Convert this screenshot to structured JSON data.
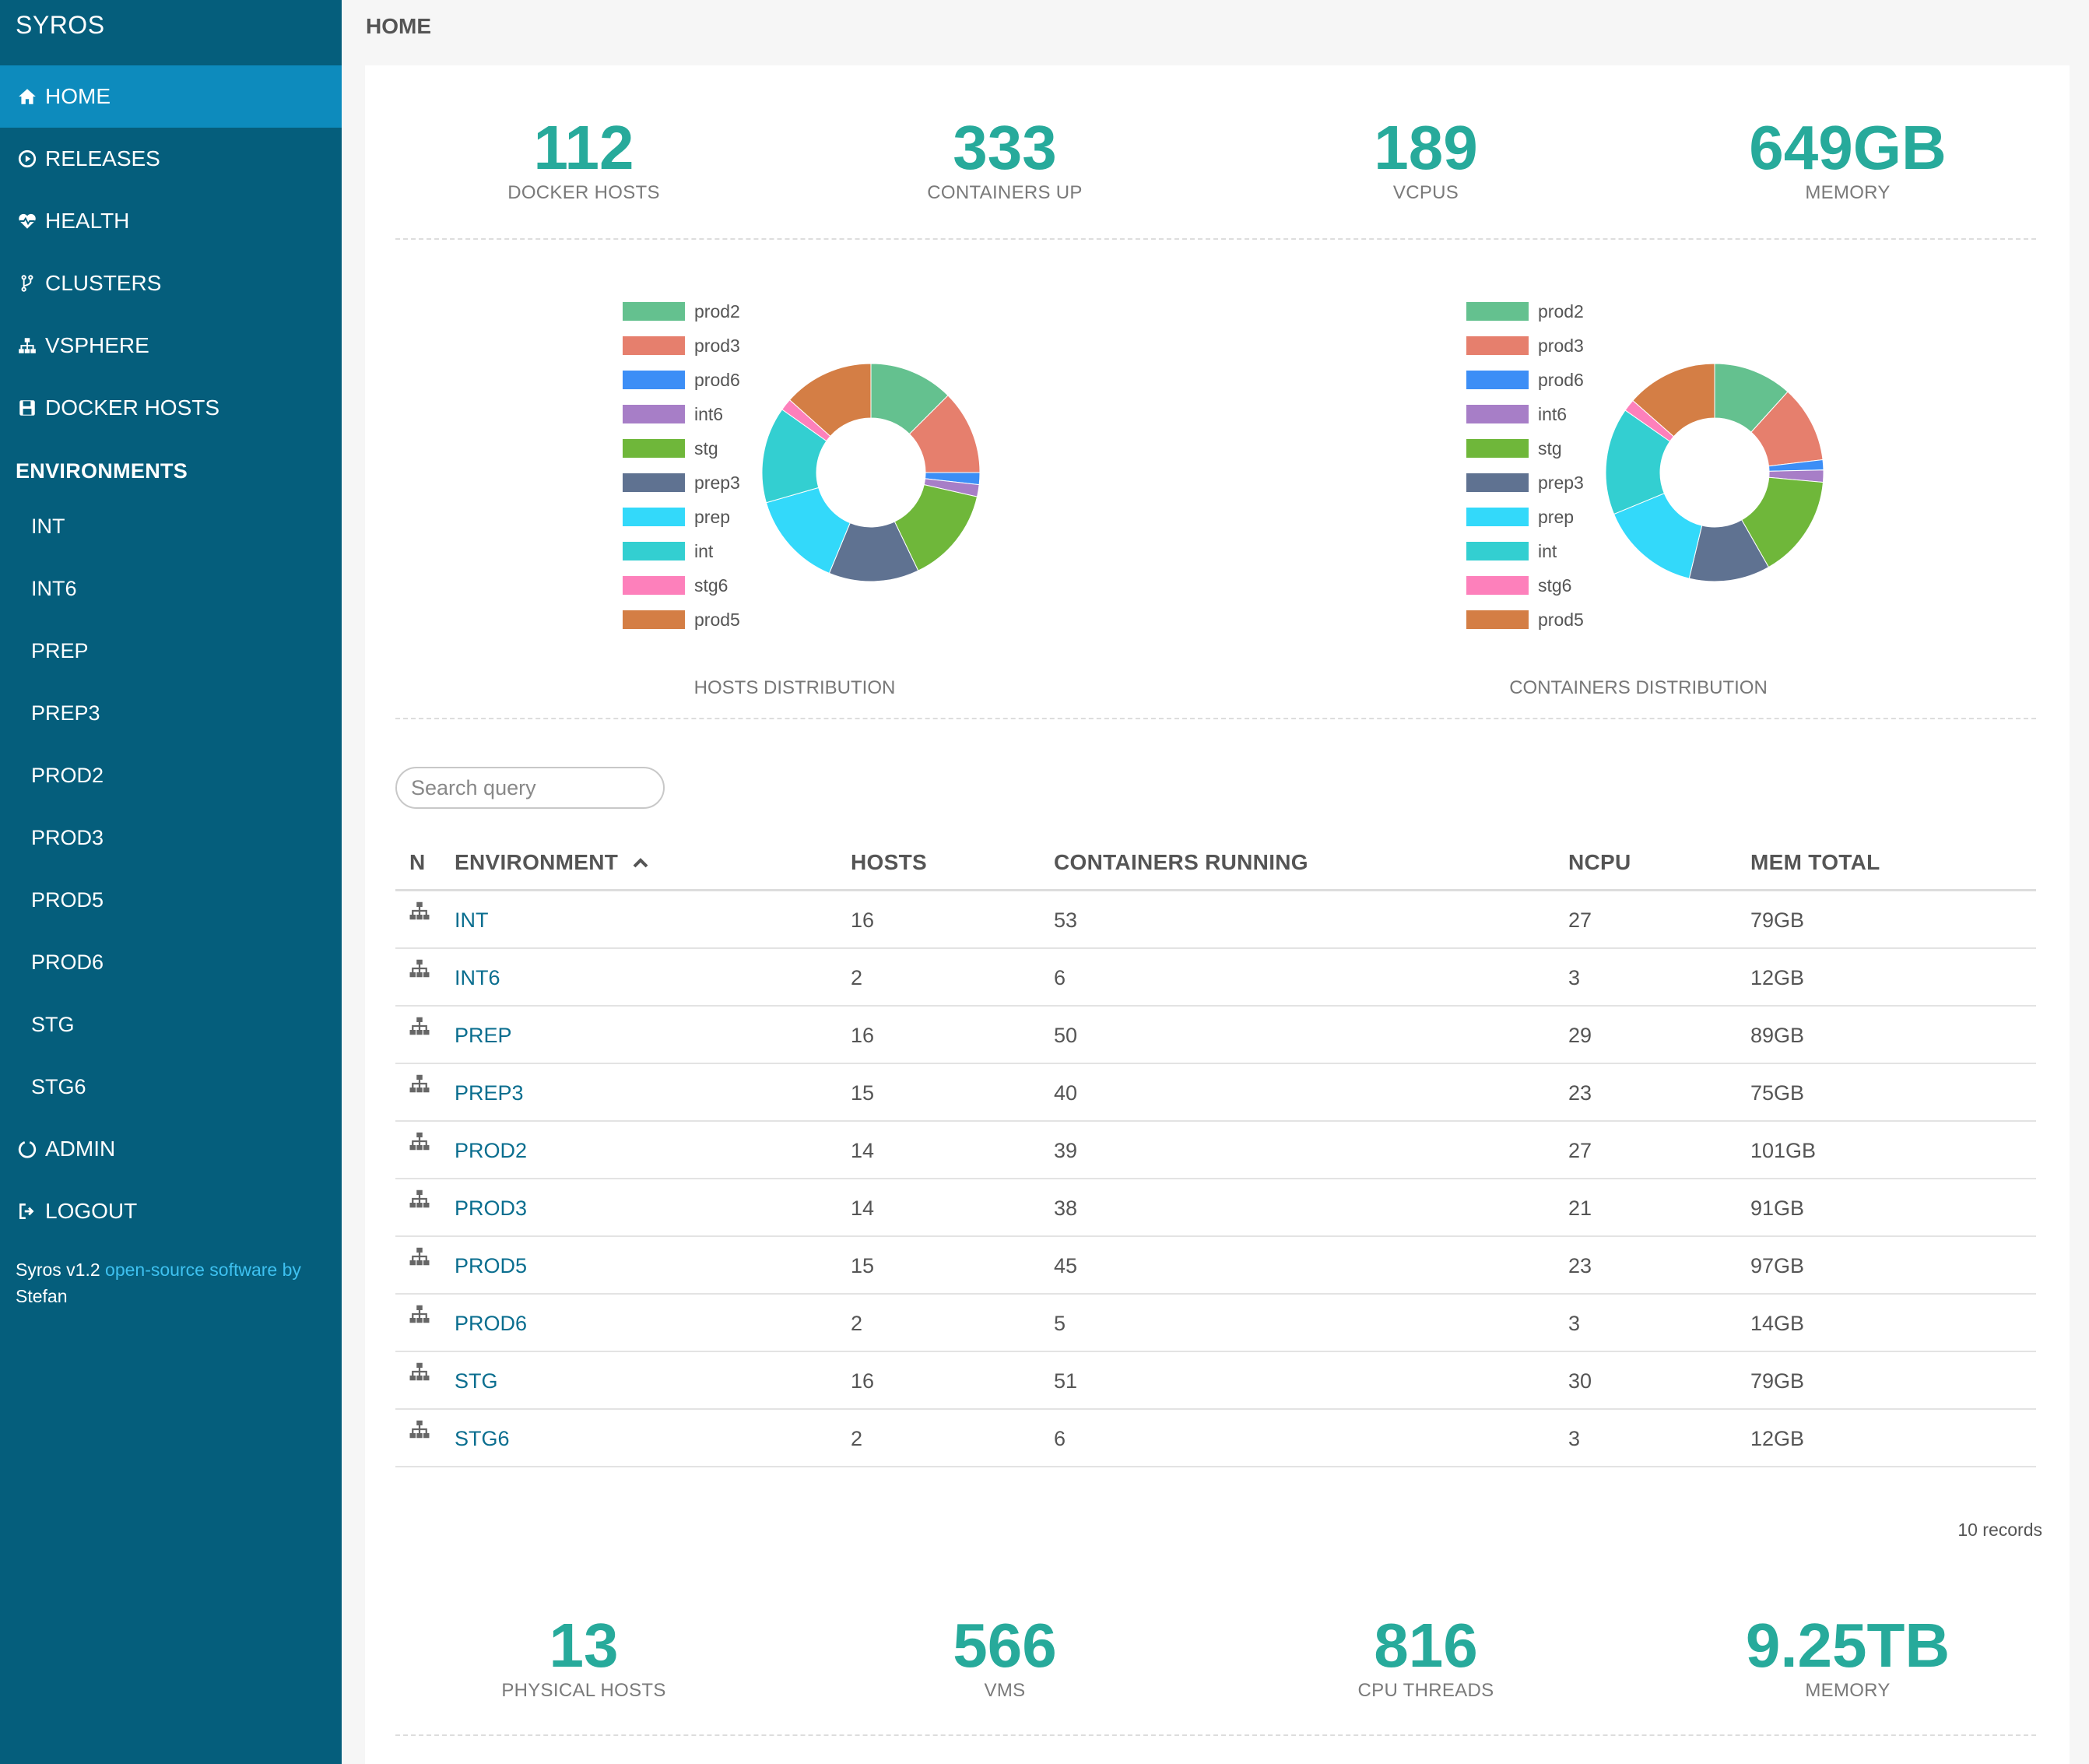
{
  "brand": "SYROS",
  "nav": [
    {
      "label": "HOME",
      "icon": "home-icon",
      "active": true
    },
    {
      "label": "RELEASES",
      "icon": "play-circle-icon",
      "active": false
    },
    {
      "label": "HEALTH",
      "icon": "heartbeat-icon",
      "active": false
    },
    {
      "label": "CLUSTERS",
      "icon": "code-fork-icon",
      "active": false
    },
    {
      "label": "VSPHERE",
      "icon": "sitemap-icon",
      "active": false
    },
    {
      "label": "DOCKER HOSTS",
      "icon": "floppy-icon",
      "active": false
    }
  ],
  "environments_header": "ENVIRONMENTS",
  "environments": [
    "INT",
    "INT6",
    "PREP",
    "PREP3",
    "PROD2",
    "PROD3",
    "PROD5",
    "PROD6",
    "STG",
    "STG6"
  ],
  "nav_bottom": [
    {
      "label": "ADMIN",
      "icon": "circle-notch-icon"
    },
    {
      "label": "LOGOUT",
      "icon": "sign-out-icon"
    }
  ],
  "footer": {
    "version": "Syros v1.2 ",
    "link_text": "open-source software by",
    "author": "Stefan"
  },
  "page_title": "HOME",
  "stats_top": [
    {
      "value": "112",
      "label": "DOCKER HOSTS"
    },
    {
      "value": "333",
      "label": "CONTAINERS UP"
    },
    {
      "value": "189",
      "label": "VCPUS"
    },
    {
      "value": "649GB",
      "label": "MEMORY"
    }
  ],
  "colors": {
    "sidebar": "#055e7c",
    "active_nav": "#0d8bbd",
    "accent": "#27aa9b",
    "link": "#0a6e8f"
  },
  "chart_data": [
    {
      "type": "pie",
      "title": "HOSTS DISTRIBUTION",
      "categories": [
        "prod2",
        "prod3",
        "prod6",
        "int6",
        "stg",
        "prep3",
        "prep",
        "int",
        "stg6",
        "prod5"
      ],
      "values": [
        14,
        14,
        2,
        2,
        16,
        15,
        16,
        16,
        2,
        15
      ],
      "colors": [
        "#64c18f",
        "#e67f6d",
        "#3c8ef6",
        "#a77ec7",
        "#6fb73a",
        "#5f7291",
        "#33d9fa",
        "#33cfd1",
        "#fd80bb",
        "#d47e45"
      ]
    },
    {
      "type": "pie",
      "title": "CONTAINERS DISTRIBUTION",
      "categories": [
        "prod2",
        "prod3",
        "prod6",
        "int6",
        "stg",
        "prep3",
        "prep",
        "int",
        "stg6",
        "prod5"
      ],
      "values": [
        39,
        38,
        5,
        6,
        51,
        40,
        50,
        53,
        6,
        45
      ],
      "colors": [
        "#64c18f",
        "#e67f6d",
        "#3c8ef6",
        "#a77ec7",
        "#6fb73a",
        "#5f7291",
        "#33d9fa",
        "#33cfd1",
        "#fd80bb",
        "#d47e45"
      ]
    }
  ],
  "search": {
    "placeholder": "Search query"
  },
  "table": {
    "headers": [
      "N",
      "ENVIRONMENT",
      "HOSTS",
      "CONTAINERS RUNNING",
      "NCPU",
      "MEM TOTAL"
    ],
    "rows": [
      {
        "env": "INT",
        "hosts": "16",
        "containers": "53",
        "ncpu": "27",
        "mem": "79GB"
      },
      {
        "env": "INT6",
        "hosts": "2",
        "containers": "6",
        "ncpu": "3",
        "mem": "12GB"
      },
      {
        "env": "PREP",
        "hosts": "16",
        "containers": "50",
        "ncpu": "29",
        "mem": "89GB"
      },
      {
        "env": "PREP3",
        "hosts": "15",
        "containers": "40",
        "ncpu": "23",
        "mem": "75GB"
      },
      {
        "env": "PROD2",
        "hosts": "14",
        "containers": "39",
        "ncpu": "27",
        "mem": "101GB"
      },
      {
        "env": "PROD3",
        "hosts": "14",
        "containers": "38",
        "ncpu": "21",
        "mem": "91GB"
      },
      {
        "env": "PROD5",
        "hosts": "15",
        "containers": "45",
        "ncpu": "23",
        "mem": "97GB"
      },
      {
        "env": "PROD6",
        "hosts": "2",
        "containers": "5",
        "ncpu": "3",
        "mem": "14GB"
      },
      {
        "env": "STG",
        "hosts": "16",
        "containers": "51",
        "ncpu": "30",
        "mem": "79GB"
      },
      {
        "env": "STG6",
        "hosts": "2",
        "containers": "6",
        "ncpu": "3",
        "mem": "12GB"
      }
    ],
    "records": "10 records"
  },
  "stats_bottom": [
    {
      "value": "13",
      "label": "PHYSICAL HOSTS"
    },
    {
      "value": "566",
      "label": "VMS"
    },
    {
      "value": "816",
      "label": "CPU THREADS"
    },
    {
      "value": "9.25TB",
      "label": "MEMORY"
    }
  ]
}
